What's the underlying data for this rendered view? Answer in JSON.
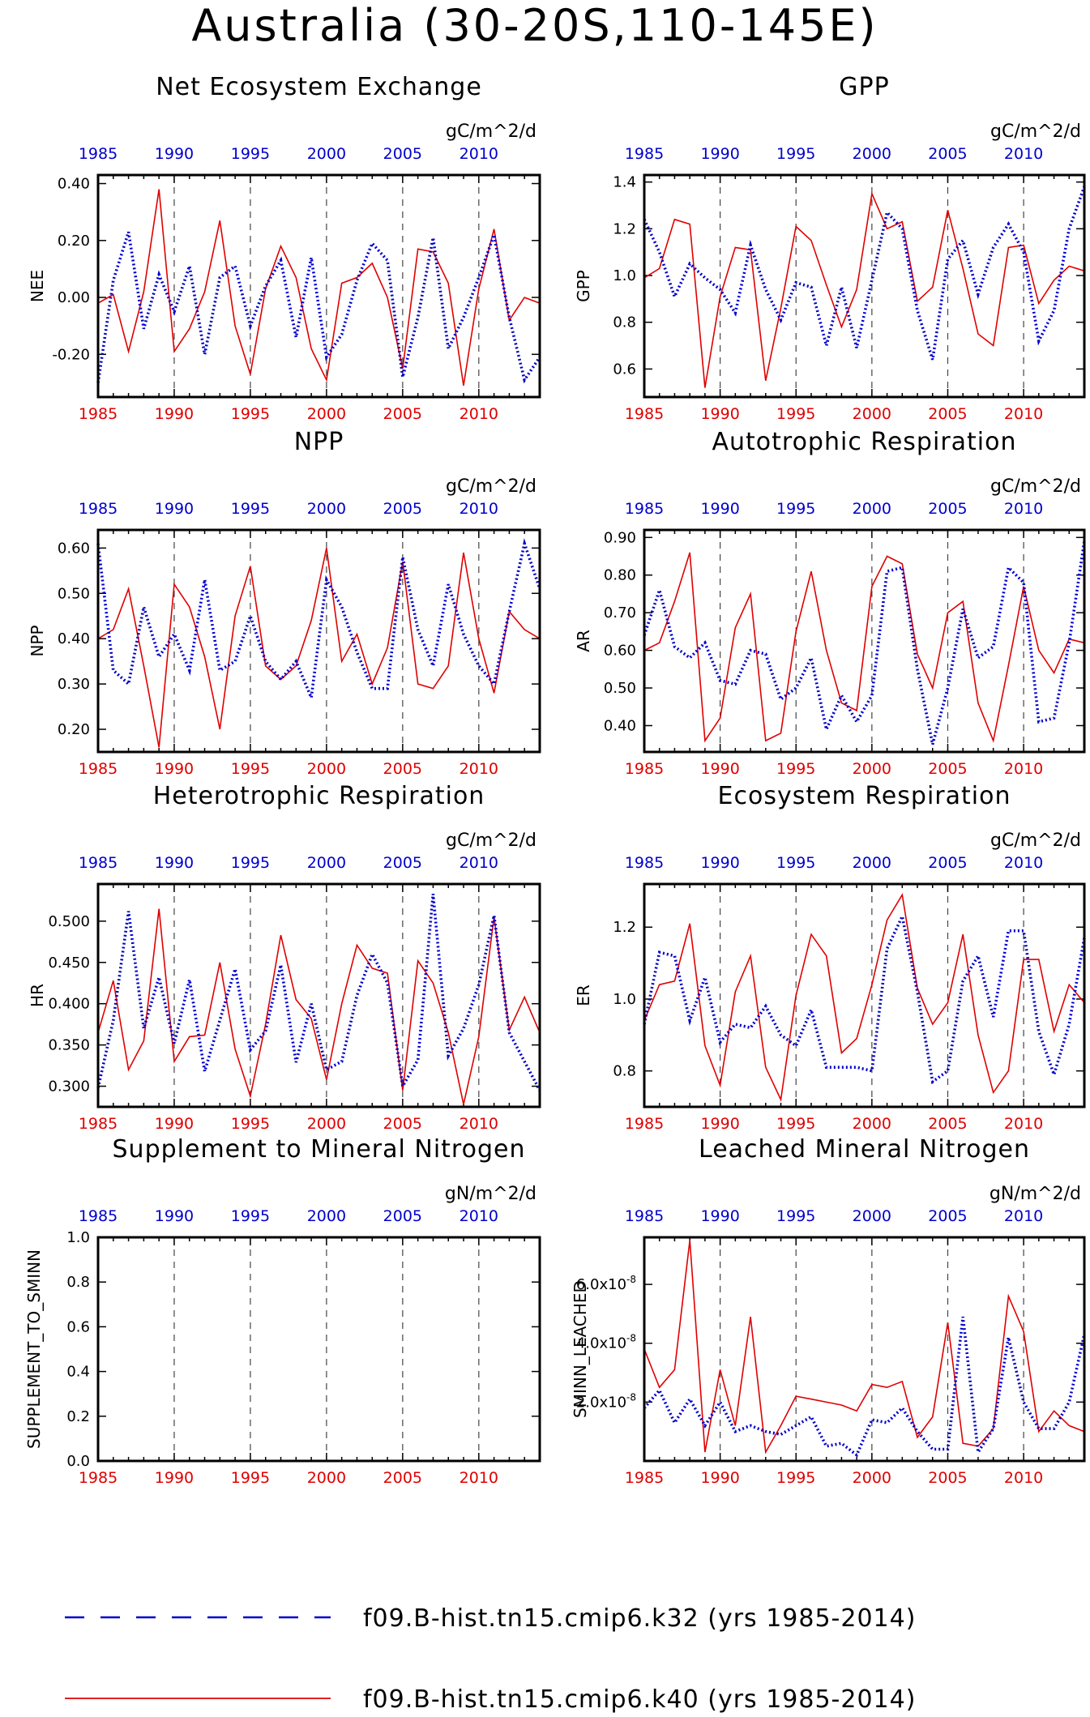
{
  "figure": {
    "title": "Australia (30-20S,110-145E)"
  },
  "colors": {
    "k40": "#e00000",
    "k32": "#0000cc"
  },
  "legend": [
    {
      "series": "k32",
      "label": "f09.B-hist.tn15.cmip6.k32 (yrs 1985-2014)",
      "style": "dashed-blue"
    },
    {
      "series": "k40",
      "label": "f09.B-hist.tn15.cmip6.k40 (yrs 1985-2014)",
      "style": "solid-red"
    }
  ],
  "chart_data": [
    {
      "type": "line",
      "title": "Net Ecosystem Exchange",
      "units": "gC/m^2/d",
      "ylabel": "NEE",
      "x_ticks": [
        1985,
        1990,
        1995,
        2000,
        2005,
        2010
      ],
      "xlim": [
        1985,
        2014
      ],
      "ylim": [
        -0.35,
        0.43
      ],
      "yticks": [
        -0.2,
        0.0,
        0.2,
        0.4
      ],
      "ytick_labels": [
        "-0.20",
        "0.00",
        "0.20",
        "0.40"
      ],
      "x": [
        1985,
        1986,
        1987,
        1988,
        1989,
        1990,
        1991,
        1992,
        1993,
        1994,
        1995,
        1996,
        1997,
        1998,
        1999,
        2000,
        2001,
        2002,
        2003,
        2004,
        2005,
        2006,
        2007,
        2008,
        2009,
        2010,
        2011,
        2012,
        2013,
        2014
      ],
      "series": [
        {
          "name": "f09.B-hist.tn15.cmip6.k40",
          "key": "k40",
          "values": [
            -0.02,
            0.01,
            -0.19,
            0.02,
            0.38,
            -0.19,
            -0.11,
            0.02,
            0.27,
            -0.1,
            -0.27,
            0.03,
            0.18,
            0.07,
            -0.18,
            -0.29,
            0.05,
            0.07,
            0.12,
            0.0,
            -0.25,
            0.17,
            0.16,
            0.05,
            -0.31,
            0.03,
            0.24,
            -0.08,
            -0.0,
            -0.02
          ]
        },
        {
          "name": "f09.B-hist.tn15.cmip6.k32",
          "key": "k32",
          "values": [
            -0.3,
            0.06,
            0.23,
            -0.11,
            0.08,
            -0.05,
            0.11,
            -0.2,
            0.07,
            0.11,
            -0.1,
            0.04,
            0.13,
            -0.14,
            0.14,
            -0.21,
            -0.13,
            0.06,
            0.19,
            0.13,
            -0.28,
            -0.07,
            0.21,
            -0.18,
            -0.07,
            0.07,
            0.22,
            -0.07,
            -0.29,
            -0.21
          ]
        }
      ]
    },
    {
      "type": "line",
      "title": "GPP",
      "units": "gC/m^2/d",
      "ylabel": "GPP",
      "x_ticks": [
        1985,
        1990,
        1995,
        2000,
        2005,
        2010
      ],
      "xlim": [
        1985,
        2014
      ],
      "ylim": [
        0.48,
        1.43
      ],
      "yticks": [
        0.6,
        0.8,
        1.0,
        1.2,
        1.4
      ],
      "ytick_labels": [
        "0.6",
        "0.8",
        "1.0",
        "1.2",
        "1.4"
      ],
      "x": [
        1985,
        1986,
        1987,
        1988,
        1989,
        1990,
        1991,
        1992,
        1993,
        1994,
        1995,
        1996,
        1997,
        1998,
        1999,
        2000,
        2001,
        2002,
        2003,
        2004,
        2005,
        2006,
        2007,
        2008,
        2009,
        2010,
        2011,
        2012,
        2013,
        2014
      ],
      "series": [
        {
          "name": "f09.B-hist.tn15.cmip6.k40",
          "key": "k40",
          "values": [
            0.99,
            1.03,
            1.24,
            1.22,
            0.52,
            0.91,
            1.12,
            1.11,
            0.55,
            0.86,
            1.21,
            1.15,
            0.96,
            0.78,
            0.94,
            1.35,
            1.2,
            1.23,
            0.89,
            0.95,
            1.28,
            1.03,
            0.75,
            0.7,
            1.12,
            1.13,
            0.88,
            0.98,
            1.04,
            1.02
          ]
        },
        {
          "name": "f09.B-hist.tn15.cmip6.k32",
          "key": "k32",
          "values": [
            1.24,
            1.1,
            0.91,
            1.05,
            0.99,
            0.94,
            0.84,
            1.13,
            0.94,
            0.81,
            0.97,
            0.95,
            0.7,
            0.95,
            0.69,
            0.98,
            1.27,
            1.2,
            0.85,
            0.64,
            1.07,
            1.15,
            0.92,
            1.12,
            1.22,
            1.1,
            0.72,
            0.85,
            1.2,
            1.38
          ]
        }
      ]
    },
    {
      "type": "line",
      "title": "NPP",
      "units": "gC/m^2/d",
      "ylabel": "NPP",
      "x_ticks": [
        1985,
        1990,
        1995,
        2000,
        2005,
        2010
      ],
      "xlim": [
        1985,
        2014
      ],
      "ylim": [
        0.15,
        0.64
      ],
      "yticks": [
        0.2,
        0.3,
        0.4,
        0.5,
        0.6
      ],
      "ytick_labels": [
        "0.20",
        "0.30",
        "0.40",
        "0.50",
        "0.60"
      ],
      "x": [
        1985,
        1986,
        1987,
        1988,
        1989,
        1990,
        1991,
        1992,
        1993,
        1994,
        1995,
        1996,
        1997,
        1998,
        1999,
        2000,
        2001,
        2002,
        2003,
        2004,
        2005,
        2006,
        2007,
        2008,
        2009,
        2010,
        2011,
        2012,
        2013,
        2014
      ],
      "series": [
        {
          "name": "f09.B-hist.tn15.cmip6.k40",
          "key": "k40",
          "values": [
            0.4,
            0.42,
            0.51,
            0.34,
            0.16,
            0.52,
            0.47,
            0.36,
            0.2,
            0.45,
            0.56,
            0.34,
            0.31,
            0.34,
            0.44,
            0.6,
            0.35,
            0.41,
            0.3,
            0.38,
            0.57,
            0.3,
            0.29,
            0.34,
            0.59,
            0.4,
            0.28,
            0.46,
            0.42,
            0.4
          ]
        },
        {
          "name": "f09.B-hist.tn15.cmip6.k32",
          "key": "k32",
          "values": [
            0.61,
            0.33,
            0.3,
            0.47,
            0.36,
            0.41,
            0.33,
            0.53,
            0.33,
            0.35,
            0.45,
            0.35,
            0.31,
            0.35,
            0.27,
            0.53,
            0.47,
            0.37,
            0.29,
            0.29,
            0.58,
            0.42,
            0.34,
            0.52,
            0.41,
            0.34,
            0.3,
            0.46,
            0.61,
            0.51
          ]
        }
      ]
    },
    {
      "type": "line",
      "title": "Autotrophic Respiration",
      "units": "gC/m^2/d",
      "ylabel": "AR",
      "x_ticks": [
        1985,
        1990,
        1995,
        2000,
        2005,
        2010
      ],
      "xlim": [
        1985,
        2014
      ],
      "ylim": [
        0.33,
        0.92
      ],
      "yticks": [
        0.4,
        0.5,
        0.6,
        0.7,
        0.8,
        0.9
      ],
      "ytick_labels": [
        "0.40",
        "0.50",
        "0.60",
        "0.70",
        "0.80",
        "0.90"
      ],
      "x": [
        1985,
        1986,
        1987,
        1988,
        1989,
        1990,
        1991,
        1992,
        1993,
        1994,
        1995,
        1996,
        1997,
        1998,
        1999,
        2000,
        2001,
        2002,
        2003,
        2004,
        2005,
        2006,
        2007,
        2008,
        2009,
        2010,
        2011,
        2012,
        2013,
        2014
      ],
      "series": [
        {
          "name": "f09.B-hist.tn15.cmip6.k40",
          "key": "k40",
          "values": [
            0.6,
            0.62,
            0.73,
            0.86,
            0.36,
            0.42,
            0.66,
            0.75,
            0.36,
            0.38,
            0.65,
            0.81,
            0.6,
            0.46,
            0.44,
            0.77,
            0.85,
            0.83,
            0.59,
            0.5,
            0.7,
            0.73,
            0.46,
            0.36,
            0.56,
            0.77,
            0.6,
            0.54,
            0.63,
            0.62
          ]
        },
        {
          "name": "f09.B-hist.tn15.cmip6.k32",
          "key": "k32",
          "values": [
            0.64,
            0.76,
            0.61,
            0.58,
            0.62,
            0.52,
            0.51,
            0.6,
            0.59,
            0.47,
            0.5,
            0.58,
            0.39,
            0.48,
            0.41,
            0.48,
            0.81,
            0.82,
            0.55,
            0.35,
            0.5,
            0.71,
            0.58,
            0.61,
            0.82,
            0.78,
            0.41,
            0.42,
            0.62,
            0.89
          ]
        }
      ]
    },
    {
      "type": "line",
      "title": "Heterotrophic Respiration",
      "units": "gC/m^2/d",
      "ylabel": "HR",
      "x_ticks": [
        1985,
        1990,
        1995,
        2000,
        2005,
        2010
      ],
      "xlim": [
        1985,
        2014
      ],
      "ylim": [
        0.275,
        0.545
      ],
      "yticks": [
        0.3,
        0.35,
        0.4,
        0.45,
        0.5
      ],
      "ytick_labels": [
        "0.300",
        "0.350",
        "0.400",
        "0.450",
        "0.500"
      ],
      "x": [
        1985,
        1986,
        1987,
        1988,
        1989,
        1990,
        1991,
        1992,
        1993,
        1994,
        1995,
        1996,
        1997,
        1998,
        1999,
        2000,
        2001,
        2002,
        2003,
        2004,
        2005,
        2006,
        2007,
        2008,
        2009,
        2010,
        2011,
        2012,
        2013,
        2014
      ],
      "series": [
        {
          "name": "f09.B-hist.tn15.cmip6.k40",
          "key": "k40",
          "values": [
            0.365,
            0.428,
            0.32,
            0.355,
            0.515,
            0.33,
            0.36,
            0.362,
            0.45,
            0.345,
            0.288,
            0.375,
            0.483,
            0.405,
            0.382,
            0.308,
            0.4,
            0.471,
            0.443,
            0.437,
            0.295,
            0.452,
            0.425,
            0.365,
            0.278,
            0.36,
            0.505,
            0.368,
            0.408,
            0.365
          ]
        },
        {
          "name": "f09.B-hist.tn15.cmip6.k32",
          "key": "k32",
          "values": [
            0.298,
            0.38,
            0.512,
            0.37,
            0.432,
            0.352,
            0.429,
            0.318,
            0.38,
            0.442,
            0.344,
            0.367,
            0.447,
            0.329,
            0.4,
            0.32,
            0.33,
            0.41,
            0.46,
            0.425,
            0.3,
            0.332,
            0.533,
            0.337,
            0.37,
            0.423,
            0.507,
            0.365,
            0.33,
            0.295
          ]
        }
      ]
    },
    {
      "type": "line",
      "title": "Ecosystem Respiration",
      "units": "gC/m^2/d",
      "ylabel": "ER",
      "x_ticks": [
        1985,
        1990,
        1995,
        2000,
        2005,
        2010
      ],
      "xlim": [
        1985,
        2014
      ],
      "ylim": [
        0.7,
        1.32
      ],
      "yticks": [
        0.8,
        1.0,
        1.2
      ],
      "ytick_labels": [
        "0.8",
        "1.0",
        "1.2"
      ],
      "x": [
        1985,
        1986,
        1987,
        1988,
        1989,
        1990,
        1991,
        1992,
        1993,
        1994,
        1995,
        1996,
        1997,
        1998,
        1999,
        2000,
        2001,
        2002,
        2003,
        2004,
        2005,
        2006,
        2007,
        2008,
        2009,
        2010,
        2011,
        2012,
        2013,
        2014
      ],
      "series": [
        {
          "name": "f09.B-hist.tn15.cmip6.k40",
          "key": "k40",
          "values": [
            0.94,
            1.04,
            1.05,
            1.21,
            0.87,
            0.76,
            1.02,
            1.12,
            0.81,
            0.72,
            1.01,
            1.18,
            1.12,
            0.85,
            0.89,
            1.04,
            1.22,
            1.29,
            1.03,
            0.93,
            0.99,
            1.18,
            0.9,
            0.74,
            0.8,
            1.11,
            1.11,
            0.91,
            1.04,
            0.99
          ]
        },
        {
          "name": "f09.B-hist.tn15.cmip6.k32",
          "key": "k32",
          "values": [
            0.93,
            1.13,
            1.12,
            0.94,
            1.06,
            0.88,
            0.93,
            0.92,
            0.98,
            0.9,
            0.87,
            0.97,
            0.81,
            0.81,
            0.81,
            0.8,
            1.14,
            1.23,
            1.02,
            0.77,
            0.8,
            1.05,
            1.12,
            0.95,
            1.19,
            1.19,
            0.91,
            0.79,
            0.93,
            1.17
          ]
        }
      ]
    },
    {
      "type": "line",
      "title": "Supplement to Mineral Nitrogen",
      "units": "gN/m^2/d",
      "ylabel": "SUPPLEMENT_TO_SMINN",
      "x_ticks": [
        1985,
        1990,
        1995,
        2000,
        2005,
        2010
      ],
      "xlim": [
        1985,
        2014
      ],
      "ylim": [
        0.0,
        1.0
      ],
      "yticks": [
        0.0,
        0.2,
        0.4,
        0.6,
        0.8,
        1.0
      ],
      "ytick_labels": [
        "0.0",
        "0.2",
        "0.4",
        "0.6",
        "0.8",
        "1.0"
      ],
      "x": [
        1985,
        1986,
        1987,
        1988,
        1989,
        1990,
        1991,
        1992,
        1993,
        1994,
        1995,
        1996,
        1997,
        1998,
        1999,
        2000,
        2001,
        2002,
        2003,
        2004,
        2005,
        2006,
        2007,
        2008,
        2009,
        2010,
        2011,
        2012,
        2013,
        2014
      ],
      "series": []
    },
    {
      "type": "line",
      "title": "Leached Mineral Nitrogen",
      "units": "gN/m^2/d",
      "ylabel": "SMINN_LEACHED",
      "x_ticks": [
        1985,
        1990,
        1995,
        2000,
        2005,
        2010
      ],
      "xlim": [
        1985,
        2014
      ],
      "ylim": [
        0.0,
        7.6e-08
      ],
      "yticks": [
        2e-08,
        4e-08,
        6e-08
      ],
      "ytick_labels": [
        "2.0x10",
        "4.0x10",
        "6.0x10"
      ],
      "ytick_exponent": "-8",
      "x": [
        1985,
        1986,
        1987,
        1988,
        1989,
        1990,
        1991,
        1992,
        1993,
        1994,
        1995,
        1996,
        1997,
        1998,
        1999,
        2000,
        2001,
        2002,
        2003,
        2004,
        2005,
        2006,
        2007,
        2008,
        2009,
        2010,
        2011,
        2012,
        2013,
        2014
      ],
      "series": [
        {
          "name": "f09.B-hist.tn15.cmip6.k40",
          "key": "k40",
          "values": [
            3.8e-08,
            2.5e-08,
            3.1e-08,
            7.5e-08,
            3e-09,
            3.1e-08,
            1.2e-08,
            4.9e-08,
            3e-09,
            1.2e-08,
            2.2e-08,
            2.1e-08,
            2e-08,
            1.9e-08,
            1.7e-08,
            2.6e-08,
            2.5e-08,
            2.7e-08,
            8e-09,
            1.5e-08,
            4.7e-08,
            6e-09,
            5e-09,
            1.1e-08,
            5.6e-08,
            4.4e-08,
            1e-08,
            1.7e-08,
            1.2e-08,
            1e-08
          ]
        },
        {
          "name": "f09.B-hist.tn15.cmip6.k32",
          "key": "k32",
          "values": [
            1.8e-08,
            2.4e-08,
            1.3e-08,
            2.1e-08,
            1.2e-08,
            2e-08,
            1e-08,
            1.2e-08,
            1e-08,
            9e-09,
            1.2e-08,
            1.5e-08,
            5e-09,
            6e-09,
            2e-09,
            1.4e-08,
            1.3e-08,
            1.8e-08,
            1e-08,
            4e-09,
            4e-09,
            4.9e-08,
            3e-09,
            1.1e-08,
            4.2e-08,
            2e-08,
            1.1e-08,
            1.1e-08,
            2e-08,
            4.3e-08
          ]
        }
      ]
    }
  ]
}
